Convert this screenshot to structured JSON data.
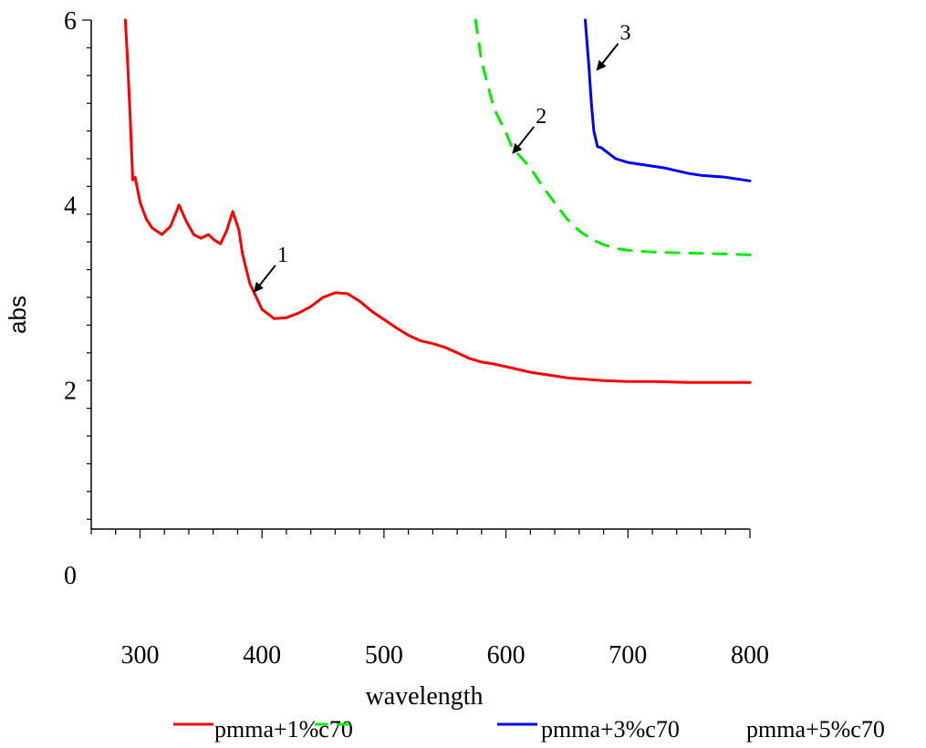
{
  "chart_data": {
    "type": "line",
    "title": "",
    "xlabel": "wavelength",
    "ylabel": "abs",
    "xlim": [
      260,
      800
    ],
    "ylim": [
      0,
      6
    ],
    "xticks": [
      300,
      400,
      500,
      600,
      700,
      800
    ],
    "xtick_labels": [
      "300",
      "400",
      "500",
      "600",
      "700",
      "800"
    ],
    "yticks": [
      0,
      2,
      4,
      6
    ],
    "ytick_labels": [
      "0",
      "2",
      "4",
      "6"
    ],
    "grid": false,
    "legend_placement": "bottom",
    "series": [
      {
        "name": "pmma+1%c70",
        "color": "#ff0000",
        "dash": "solid",
        "x": [
          288,
          290,
          292,
          294,
          296,
          300,
          305,
          310,
          318,
          325,
          332,
          338,
          344,
          350,
          356,
          361,
          366,
          371,
          376,
          381,
          384,
          390,
          400,
          410,
          420,
          430,
          440,
          450,
          460,
          470,
          480,
          490,
          500,
          510,
          520,
          530,
          540,
          550,
          560,
          570,
          580,
          590,
          600,
          610,
          620,
          630,
          640,
          650,
          660,
          680,
          700,
          720,
          750,
          800
        ],
        "y": [
          6.0,
          5.5,
          4.92,
          4.27,
          4.3,
          4.03,
          3.85,
          3.75,
          3.68,
          3.77,
          4.0,
          3.82,
          3.68,
          3.64,
          3.68,
          3.62,
          3.58,
          3.72,
          3.93,
          3.73,
          3.47,
          3.15,
          2.87,
          2.77,
          2.78,
          2.83,
          2.9,
          3.0,
          3.05,
          3.04,
          2.96,
          2.85,
          2.76,
          2.67,
          2.59,
          2.53,
          2.5,
          2.46,
          2.4,
          2.34,
          2.3,
          2.28,
          2.25,
          2.22,
          2.19,
          2.17,
          2.15,
          2.13,
          2.12,
          2.1,
          2.09,
          2.09,
          2.08,
          2.08
        ]
      },
      {
        "name": "pmma+3%c70",
        "color": "#00ee00",
        "dash": "dashed",
        "x": [
          575,
          580,
          590,
          600,
          605,
          612,
          620,
          630,
          640,
          650,
          660,
          670,
          680,
          690,
          700,
          720,
          750,
          780,
          800
        ],
        "y": [
          6.0,
          5.55,
          5.05,
          4.78,
          4.62,
          4.52,
          4.4,
          4.2,
          4.02,
          3.85,
          3.72,
          3.63,
          3.57,
          3.53,
          3.51,
          3.49,
          3.48,
          3.47,
          3.46
        ]
      },
      {
        "name": "pmma+5%c70",
        "color": "#0000ff",
        "dash": "solid",
        "x": [
          665,
          668,
          670,
          672,
          675,
          678,
          680,
          685,
          690,
          700,
          710,
          720,
          730,
          740,
          750,
          760,
          770,
          780,
          790,
          800
        ],
        "y": [
          6.0,
          5.5,
          5.1,
          4.8,
          4.63,
          4.62,
          4.6,
          4.55,
          4.5,
          4.46,
          4.44,
          4.42,
          4.4,
          4.37,
          4.34,
          4.32,
          4.31,
          4.3,
          4.28,
          4.26
        ]
      }
    ],
    "annotations": [
      {
        "text": "1",
        "x": 393,
        "y": 3.05
      },
      {
        "text": "2",
        "x": 605,
        "y": 4.55
      },
      {
        "text": "3",
        "x": 674,
        "y": 5.45
      }
    ]
  }
}
